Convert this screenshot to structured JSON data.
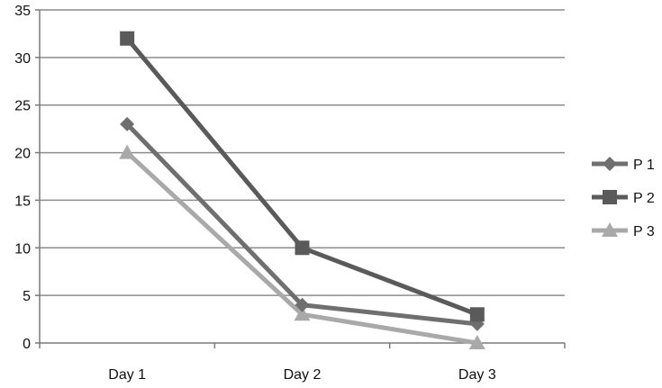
{
  "chart_data": {
    "type": "line",
    "categories": [
      "Day 1",
      "Day 2",
      "Day 3"
    ],
    "series": [
      {
        "name": "P 1",
        "values": [
          23,
          4,
          2
        ],
        "color": "#6f6f6f",
        "marker": "diamond"
      },
      {
        "name": "P 2",
        "values": [
          32,
          10,
          3
        ],
        "color": "#5a5a5a",
        "marker": "square"
      },
      {
        "name": "P 3",
        "values": [
          20,
          3,
          0
        ],
        "color": "#a9a9a9",
        "marker": "triangle"
      }
    ],
    "y_ticks": [
      "0",
      "5",
      "10",
      "15",
      "20",
      "25",
      "30",
      "35"
    ],
    "ylim": [
      0,
      35
    ],
    "grid": true,
    "legend_position": "right"
  }
}
